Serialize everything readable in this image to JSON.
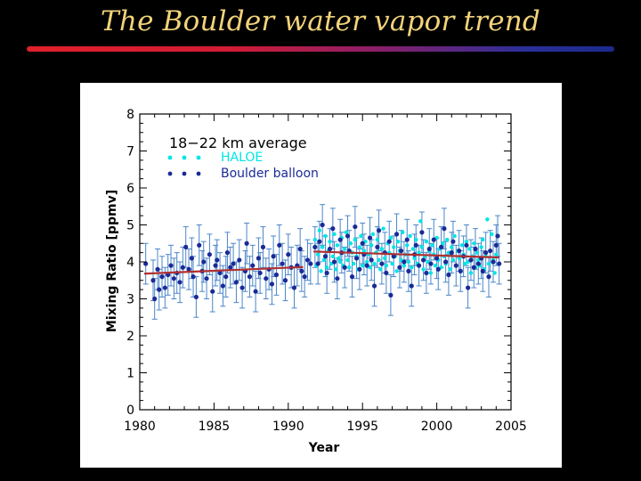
{
  "slide": {
    "title": "The Boulder water vapor trend"
  },
  "colors": {
    "title": "#f2d37a",
    "haloe": "#00e5e5",
    "balloon": "#1a2a96",
    "errorbar": "#4b86c8",
    "trend": "#b03030"
  },
  "chart_data": {
    "type": "scatter",
    "annotation": "18−22 km average",
    "xlabel": "Year",
    "ylabel": "Mixing Ratio [ppmv]",
    "xlim": [
      1980,
      2005
    ],
    "ylim": [
      0,
      8
    ],
    "xticks": [
      1980,
      1985,
      1990,
      1995,
      2000,
      2005
    ],
    "yticks": [
      0,
      1,
      2,
      3,
      4,
      5,
      6,
      7,
      8
    ],
    "legend": {
      "placement": "top-left",
      "entries": [
        {
          "name": "HALOE",
          "color": "#00e5e5"
        },
        {
          "name": "Boulder balloon",
          "color": "#1a2a96"
        }
      ]
    },
    "trend_lines": [
      {
        "from": [
          1980.3,
          3.68
        ],
        "to": [
          1991.0,
          3.86
        ]
      },
      {
        "from": [
          1991.7,
          4.28
        ],
        "to": [
          2004.2,
          4.12
        ]
      }
    ],
    "balloon_error": 0.55,
    "series": [
      {
        "name": "Boulder balloon",
        "points": [
          [
            1980.4,
            3.95
          ],
          [
            1980.9,
            3.5
          ],
          [
            1981.0,
            3.0
          ],
          [
            1981.2,
            3.8
          ],
          [
            1981.3,
            3.25
          ],
          [
            1981.5,
            3.6
          ],
          [
            1981.7,
            3.3
          ],
          [
            1981.9,
            3.65
          ],
          [
            1982.1,
            3.9
          ],
          [
            1982.3,
            3.55
          ],
          [
            1982.5,
            3.7
          ],
          [
            1982.7,
            3.45
          ],
          [
            1982.9,
            3.85
          ],
          [
            1983.1,
            4.4
          ],
          [
            1983.3,
            3.8
          ],
          [
            1983.5,
            4.1
          ],
          [
            1983.6,
            3.6
          ],
          [
            1983.8,
            3.05
          ],
          [
            1984.0,
            4.45
          ],
          [
            1984.2,
            3.75
          ],
          [
            1984.3,
            4.0
          ],
          [
            1984.5,
            3.55
          ],
          [
            1984.7,
            4.2
          ],
          [
            1984.9,
            3.2
          ],
          [
            1985.1,
            3.9
          ],
          [
            1985.2,
            4.05
          ],
          [
            1985.4,
            3.7
          ],
          [
            1985.6,
            3.35
          ],
          [
            1985.8,
            3.6
          ],
          [
            1985.9,
            4.25
          ],
          [
            1986.1,
            3.85
          ],
          [
            1986.3,
            3.95
          ],
          [
            1986.5,
            3.45
          ],
          [
            1986.7,
            4.05
          ],
          [
            1986.9,
            3.3
          ],
          [
            1987.1,
            3.75
          ],
          [
            1987.2,
            4.5
          ],
          [
            1987.4,
            3.6
          ],
          [
            1987.6,
            3.9
          ],
          [
            1987.8,
            3.2
          ],
          [
            1988.0,
            4.1
          ],
          [
            1988.1,
            3.7
          ],
          [
            1988.3,
            4.4
          ],
          [
            1988.5,
            3.55
          ],
          [
            1988.7,
            3.8
          ],
          [
            1988.9,
            3.4
          ],
          [
            1989.0,
            4.15
          ],
          [
            1989.2,
            3.65
          ],
          [
            1989.4,
            4.45
          ],
          [
            1989.6,
            3.95
          ],
          [
            1989.8,
            3.5
          ],
          [
            1990.0,
            4.2
          ],
          [
            1990.2,
            3.85
          ],
          [
            1990.4,
            3.3
          ],
          [
            1990.6,
            3.9
          ],
          [
            1990.8,
            4.35
          ],
          [
            1990.9,
            3.75
          ],
          [
            1991.1,
            3.6
          ],
          [
            1991.3,
            4.05
          ],
          [
            1991.5,
            3.95
          ],
          [
            1991.8,
            4.4
          ],
          [
            1992.0,
            3.95
          ],
          [
            1992.1,
            4.55
          ],
          [
            1992.3,
            5.0
          ],
          [
            1992.5,
            4.15
          ],
          [
            1992.6,
            3.7
          ],
          [
            1992.8,
            4.35
          ],
          [
            1993.0,
            4.9
          ],
          [
            1993.1,
            4.0
          ],
          [
            1993.3,
            3.55
          ],
          [
            1993.5,
            4.6
          ],
          [
            1993.6,
            4.25
          ],
          [
            1993.8,
            3.85
          ],
          [
            1994.0,
            4.7
          ],
          [
            1994.1,
            4.3
          ],
          [
            1994.3,
            3.6
          ],
          [
            1994.5,
            4.95
          ],
          [
            1994.6,
            4.1
          ],
          [
            1994.8,
            3.8
          ],
          [
            1995.0,
            4.5
          ],
          [
            1995.1,
            4.2
          ],
          [
            1995.3,
            3.9
          ],
          [
            1995.5,
            4.65
          ],
          [
            1995.6,
            4.05
          ],
          [
            1995.8,
            3.35
          ],
          [
            1996.0,
            4.4
          ],
          [
            1996.1,
            4.85
          ],
          [
            1996.3,
            3.95
          ],
          [
            1996.5,
            4.25
          ],
          [
            1996.6,
            3.7
          ],
          [
            1996.8,
            4.55
          ],
          [
            1996.9,
            3.1
          ],
          [
            1997.1,
            4.15
          ],
          [
            1997.3,
            4.75
          ],
          [
            1997.5,
            3.85
          ],
          [
            1997.6,
            4.3
          ],
          [
            1997.8,
            4.0
          ],
          [
            1998.0,
            4.6
          ],
          [
            1998.1,
            3.75
          ],
          [
            1998.3,
            3.35
          ],
          [
            1998.5,
            4.2
          ],
          [
            1998.6,
            4.45
          ],
          [
            1998.8,
            3.9
          ],
          [
            1999.0,
            4.8
          ],
          [
            1999.1,
            4.05
          ],
          [
            1999.3,
            3.7
          ],
          [
            1999.5,
            4.35
          ],
          [
            1999.6,
            3.95
          ],
          [
            1999.8,
            4.6
          ],
          [
            2000.0,
            4.1
          ],
          [
            2000.1,
            3.8
          ],
          [
            2000.3,
            4.4
          ],
          [
            2000.5,
            4.9
          ],
          [
            2000.6,
            4.0
          ],
          [
            2000.8,
            3.65
          ],
          [
            2001.0,
            4.25
          ],
          [
            2001.1,
            4.55
          ],
          [
            2001.3,
            3.9
          ],
          [
            2001.5,
            4.3
          ],
          [
            2001.6,
            3.75
          ],
          [
            2001.8,
            4.15
          ],
          [
            2002.0,
            4.45
          ],
          [
            2002.1,
            3.3
          ],
          [
            2002.3,
            4.05
          ],
          [
            2002.5,
            3.85
          ],
          [
            2002.6,
            4.35
          ],
          [
            2002.8,
            3.95
          ],
          [
            2003.0,
            4.1
          ],
          [
            2003.1,
            3.75
          ],
          [
            2003.3,
            4.25
          ],
          [
            2003.5,
            3.6
          ],
          [
            2003.6,
            4.3
          ],
          [
            2003.8,
            4.0
          ],
          [
            2004.0,
            4.45
          ],
          [
            2004.1,
            4.7
          ],
          [
            2004.2,
            3.95
          ]
        ]
      },
      {
        "name": "HALOE",
        "points": [
          [
            1991.8,
            4.6
          ],
          [
            1991.9,
            3.9
          ],
          [
            1992.0,
            4.2
          ],
          [
            1992.1,
            4.85
          ],
          [
            1992.2,
            3.75
          ],
          [
            1992.3,
            4.4
          ],
          [
            1992.4,
            4.05
          ],
          [
            1992.5,
            4.7
          ],
          [
            1992.6,
            3.85
          ],
          [
            1992.7,
            4.3
          ],
          [
            1992.8,
            4.55
          ],
          [
            1992.9,
            3.95
          ],
          [
            1993.0,
            4.15
          ],
          [
            1993.1,
            4.75
          ],
          [
            1993.2,
            3.8
          ],
          [
            1993.3,
            4.45
          ],
          [
            1993.4,
            4.1
          ],
          [
            1993.5,
            4.0
          ],
          [
            1993.6,
            4.65
          ],
          [
            1993.7,
            3.9
          ],
          [
            1993.8,
            4.35
          ],
          [
            1993.9,
            4.8
          ],
          [
            1994.0,
            4.05
          ],
          [
            1994.1,
            3.85
          ],
          [
            1994.2,
            4.5
          ],
          [
            1994.3,
            4.25
          ],
          [
            1994.4,
            3.95
          ],
          [
            1994.5,
            4.6
          ],
          [
            1994.6,
            4.15
          ],
          [
            1994.7,
            3.8
          ],
          [
            1994.8,
            4.4
          ],
          [
            1994.9,
            4.7
          ],
          [
            1995.0,
            3.9
          ],
          [
            1995.1,
            4.3
          ],
          [
            1995.2,
            4.55
          ],
          [
            1995.3,
            4.0
          ],
          [
            1995.4,
            4.2
          ],
          [
            1995.5,
            3.85
          ],
          [
            1995.6,
            4.45
          ],
          [
            1995.7,
            4.75
          ],
          [
            1995.8,
            3.95
          ],
          [
            1995.9,
            4.25
          ],
          [
            1996.0,
            4.6
          ],
          [
            1996.1,
            4.05
          ],
          [
            1996.2,
            3.8
          ],
          [
            1996.3,
            4.35
          ],
          [
            1996.4,
            4.9
          ],
          [
            1996.5,
            4.1
          ],
          [
            1996.6,
            3.9
          ],
          [
            1996.7,
            4.5
          ],
          [
            1996.8,
            4.25
          ],
          [
            1996.9,
            4.65
          ],
          [
            1997.0,
            3.95
          ],
          [
            1997.1,
            4.4
          ],
          [
            1997.2,
            4.15
          ],
          [
            1997.3,
            3.75
          ],
          [
            1997.4,
            4.55
          ],
          [
            1997.5,
            4.3
          ],
          [
            1997.6,
            4.05
          ],
          [
            1997.7,
            4.8
          ],
          [
            1997.8,
            3.9
          ],
          [
            1997.9,
            4.2
          ],
          [
            1998.0,
            4.45
          ],
          [
            1998.1,
            4.0
          ],
          [
            1998.2,
            4.7
          ],
          [
            1998.3,
            3.85
          ],
          [
            1998.4,
            4.35
          ],
          [
            1998.5,
            4.1
          ],
          [
            1998.6,
            4.6
          ],
          [
            1998.7,
            3.95
          ],
          [
            1998.8,
            4.25
          ],
          [
            1998.9,
            5.1
          ],
          [
            1999.0,
            4.4
          ],
          [
            1999.1,
            3.8
          ],
          [
            1999.2,
            4.15
          ],
          [
            1999.3,
            4.55
          ],
          [
            1999.4,
            4.0
          ],
          [
            1999.5,
            4.3
          ],
          [
            1999.6,
            3.7
          ],
          [
            1999.7,
            4.45
          ],
          [
            1999.8,
            4.2
          ],
          [
            1999.9,
            3.9
          ],
          [
            2000.0,
            4.65
          ],
          [
            2000.1,
            4.05
          ],
          [
            2000.2,
            4.35
          ],
          [
            2000.3,
            3.85
          ],
          [
            2000.4,
            4.5
          ],
          [
            2000.5,
            4.15
          ],
          [
            2000.6,
            3.95
          ],
          [
            2000.7,
            4.6
          ],
          [
            2000.8,
            4.25
          ],
          [
            2000.9,
            3.8
          ],
          [
            2001.0,
            4.4
          ],
          [
            2001.1,
            4.05
          ],
          [
            2001.2,
            4.7
          ],
          [
            2001.3,
            3.9
          ],
          [
            2001.4,
            4.3
          ],
          [
            2001.5,
            4.1
          ],
          [
            2001.6,
            3.75
          ],
          [
            2001.7,
            4.45
          ],
          [
            2001.8,
            4.2
          ],
          [
            2001.9,
            3.95
          ],
          [
            2002.0,
            4.55
          ],
          [
            2002.1,
            4.0
          ],
          [
            2002.2,
            4.35
          ],
          [
            2002.3,
            3.7
          ],
          [
            2002.4,
            4.15
          ],
          [
            2002.5,
            4.5
          ],
          [
            2002.6,
            3.85
          ],
          [
            2002.7,
            4.25
          ],
          [
            2002.8,
            4.05
          ],
          [
            2002.9,
            3.9
          ],
          [
            2003.0,
            4.4
          ],
          [
            2003.1,
            4.6
          ],
          [
            2003.2,
            3.8
          ],
          [
            2003.3,
            4.15
          ],
          [
            2003.4,
            5.15
          ],
          [
            2003.5,
            3.95
          ],
          [
            2003.6,
            4.3
          ],
          [
            2003.7,
            4.75
          ],
          [
            2003.8,
            4.05
          ],
          [
            2003.9,
            3.7
          ],
          [
            2004.0,
            4.2
          ]
        ]
      }
    ]
  }
}
